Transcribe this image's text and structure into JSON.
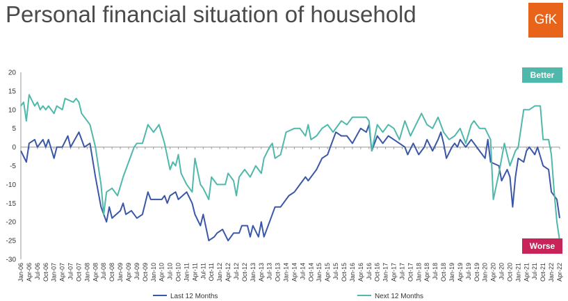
{
  "title": "Personal financial situation of household",
  "logo": {
    "text": "GfK",
    "color": "#e8641b"
  },
  "colors": {
    "last12": "#3a57a7",
    "next12": "#4fb8ab",
    "better": "#4fb8ab",
    "worse": "#c8245a"
  },
  "annotations": {
    "better": "Better",
    "worse": "Worse"
  },
  "chart_data": {
    "type": "line",
    "x_start": "Jan-06",
    "x_end": "Apr-22",
    "ylim": [
      -30,
      20
    ],
    "yticks": [
      20,
      15,
      10,
      5,
      0,
      -5,
      -10,
      -15,
      -20,
      -25,
      -30
    ],
    "xticks": [
      "Jan-06",
      "Apr-06",
      "Jul-06",
      "Oct-06",
      "Jan-07",
      "Apr-07",
      "Jul-07",
      "Oct-07",
      "Jan-08",
      "Apr-08",
      "Jul-08",
      "Oct-08",
      "Jan-09",
      "Apr-09",
      "Jul-09",
      "Oct-09",
      "Jan-10",
      "Apr-10",
      "Jul-10",
      "Oct-10",
      "Jan-11",
      "Apr-11",
      "Jul-11",
      "Oct-11",
      "Jan-12",
      "Apr-12",
      "Jul-12",
      "Oct-12",
      "Jan-13",
      "Apr-13",
      "Jul-13",
      "Oct-13",
      "Jan-14",
      "Apr-14",
      "Jul-14",
      "Oct-14",
      "Jan-15",
      "Apr-15",
      "Jul-15",
      "Oct-15",
      "Jan-16",
      "Apr-16",
      "Jul-16",
      "Oct-16",
      "Jan-17",
      "Apr-17",
      "Jul-17",
      "Oct-17",
      "Jan-18",
      "Apr-18",
      "Jul-18",
      "Oct-18",
      "Jan-19",
      "Apr-19",
      "Jul-19",
      "Oct-19",
      "Jan-20",
      "Apr-20",
      "Jul-20",
      "Oct-20",
      "Jan-21",
      "Apr-21",
      "Jul-21",
      "Oct-21",
      "Jan-22",
      "Apr-22"
    ],
    "grid": false,
    "legend": "bottom",
    "series": [
      {
        "name": "Last 12 Months",
        "points": [
          [
            "Jan-06",
            -1
          ],
          [
            "Mar-06",
            -4
          ],
          [
            "Apr-06",
            1
          ],
          [
            "Jun-06",
            2
          ],
          [
            "Jul-06",
            0
          ],
          [
            "Sep-06",
            2
          ],
          [
            "Oct-06",
            0
          ],
          [
            "Nov-06",
            2
          ],
          [
            "Jan-07",
            -3
          ],
          [
            "Feb-07",
            0
          ],
          [
            "Apr-07",
            0
          ],
          [
            "Jun-07",
            3
          ],
          [
            "Jul-07",
            0
          ],
          [
            "Oct-07",
            4
          ],
          [
            "Dec-07",
            0
          ],
          [
            "Feb-08",
            1
          ],
          [
            "Apr-08",
            -8
          ],
          [
            "Jun-08",
            -16
          ],
          [
            "Aug-08",
            -20
          ],
          [
            "Sep-08",
            -16
          ],
          [
            "Oct-08",
            -19
          ],
          [
            "Jan-09",
            -17
          ],
          [
            "Feb-09",
            -15
          ],
          [
            "Mar-09",
            -18
          ],
          [
            "May-09",
            -17
          ],
          [
            "Jul-09",
            -19
          ],
          [
            "Sep-09",
            -18
          ],
          [
            "Nov-09",
            -12
          ],
          [
            "Dec-09",
            -14
          ],
          [
            "Apr-10",
            -14
          ],
          [
            "May-10",
            -13
          ],
          [
            "Jun-10",
            -15
          ],
          [
            "Jul-10",
            -13
          ],
          [
            "Sep-10",
            -12
          ],
          [
            "Oct-10",
            -14
          ],
          [
            "Jan-11",
            -12
          ],
          [
            "Mar-11",
            -15
          ],
          [
            "Apr-11",
            -18
          ],
          [
            "Jun-11",
            -21
          ],
          [
            "Jul-11",
            -18
          ],
          [
            "Sep-11",
            -25
          ],
          [
            "Nov-11",
            -24
          ],
          [
            "Dec-11",
            -23
          ],
          [
            "Feb-12",
            -22
          ],
          [
            "Apr-12",
            -25
          ],
          [
            "Jun-12",
            -23
          ],
          [
            "Aug-12",
            -23
          ],
          [
            "Sep-12",
            -21
          ],
          [
            "Nov-12",
            -21
          ],
          [
            "Dec-12",
            -24
          ],
          [
            "Jan-13",
            -21
          ],
          [
            "Mar-13",
            -24
          ],
          [
            "Apr-13",
            -20
          ],
          [
            "May-13",
            -24
          ],
          [
            "Jul-13",
            -20
          ],
          [
            "Sep-13",
            -16
          ],
          [
            "Nov-13",
            -16
          ],
          [
            "Feb-14",
            -13
          ],
          [
            "Apr-14",
            -12
          ],
          [
            "Jun-14",
            -10
          ],
          [
            "Aug-14",
            -8
          ],
          [
            "Sep-14",
            -9
          ],
          [
            "Dec-14",
            -6
          ],
          [
            "Feb-15",
            -3
          ],
          [
            "Apr-15",
            -2
          ],
          [
            "May-15",
            0
          ],
          [
            "Jul-15",
            4
          ],
          [
            "Sep-15",
            3
          ],
          [
            "Nov-15",
            3
          ],
          [
            "Jan-16",
            1
          ],
          [
            "Apr-16",
            5
          ],
          [
            "Jun-16",
            4
          ],
          [
            "Jul-16",
            6
          ],
          [
            "Aug-16",
            -1
          ],
          [
            "Oct-16",
            3
          ],
          [
            "Dec-16",
            1
          ],
          [
            "Feb-17",
            3
          ],
          [
            "Apr-17",
            2
          ],
          [
            "Jun-17",
            1
          ],
          [
            "Aug-17",
            0
          ],
          [
            "Sep-17",
            -2
          ],
          [
            "Nov-17",
            1
          ],
          [
            "Jan-18",
            -2
          ],
          [
            "Mar-18",
            0
          ],
          [
            "Apr-18",
            2
          ],
          [
            "Jun-18",
            -1
          ],
          [
            "Aug-18",
            2
          ],
          [
            "Sep-18",
            4
          ],
          [
            "Oct-18",
            1
          ],
          [
            "Nov-18",
            -3
          ],
          [
            "Jan-19",
            0
          ],
          [
            "Feb-19",
            1
          ],
          [
            "Mar-19",
            0
          ],
          [
            "Apr-19",
            2
          ],
          [
            "Jun-19",
            0
          ],
          [
            "Aug-19",
            2
          ],
          [
            "Sep-19",
            1
          ],
          [
            "Oct-19",
            0
          ],
          [
            "Nov-19",
            -1
          ],
          [
            "Jan-20",
            -3
          ],
          [
            "Feb-20",
            2
          ],
          [
            "Mar-20",
            -4
          ],
          [
            "Jun-20",
            -5
          ],
          [
            "Jul-20",
            -9
          ],
          [
            "Sep-20",
            -6
          ],
          [
            "Oct-20",
            -8
          ],
          [
            "Nov-20",
            -16
          ],
          [
            "Dec-20",
            -8
          ],
          [
            "Jan-21",
            -3
          ],
          [
            "Mar-21",
            -4
          ],
          [
            "Apr-21",
            -1
          ],
          [
            "May-21",
            0
          ],
          [
            "Jul-21",
            -2
          ],
          [
            "Aug-21",
            0
          ],
          [
            "Oct-21",
            -5
          ],
          [
            "Dec-21",
            -6
          ],
          [
            "Jan-22",
            -12
          ],
          [
            "Mar-22",
            -14
          ],
          [
            "Apr-22",
            -19
          ]
        ]
      },
      {
        "name": "Next 12 Months",
        "points": [
          [
            "Jan-06",
            11
          ],
          [
            "Feb-06",
            12
          ],
          [
            "Mar-06",
            7
          ],
          [
            "Apr-06",
            14
          ],
          [
            "Jun-06",
            11
          ],
          [
            "Jul-06",
            12
          ],
          [
            "Aug-06",
            10
          ],
          [
            "Sep-06",
            11
          ],
          [
            "Oct-06",
            10
          ],
          [
            "Nov-06",
            11
          ],
          [
            "Jan-07",
            9
          ],
          [
            "Feb-07",
            11
          ],
          [
            "Apr-07",
            10
          ],
          [
            "May-07",
            13
          ],
          [
            "Aug-07",
            12
          ],
          [
            "Sep-07",
            13
          ],
          [
            "Oct-07",
            12
          ],
          [
            "Nov-07",
            9
          ],
          [
            "Feb-08",
            6
          ],
          [
            "Apr-08",
            0
          ],
          [
            "Jun-08",
            -10
          ],
          [
            "Jul-08",
            -18
          ],
          [
            "Aug-08",
            -12
          ],
          [
            "Oct-08",
            -11
          ],
          [
            "Dec-08",
            -13
          ],
          [
            "Feb-09",
            -8
          ],
          [
            "Apr-09",
            -4
          ],
          [
            "Jun-09",
            0
          ],
          [
            "Jul-09",
            1
          ],
          [
            "Sep-09",
            1
          ],
          [
            "Nov-09",
            6
          ],
          [
            "Jan-10",
            4
          ],
          [
            "Mar-10",
            6
          ],
          [
            "May-10",
            1
          ],
          [
            "Jul-10",
            -6
          ],
          [
            "Aug-10",
            -4
          ],
          [
            "Sep-10",
            -5
          ],
          [
            "Oct-10",
            -2
          ],
          [
            "Nov-10",
            -7
          ],
          [
            "Jan-11",
            -10
          ],
          [
            "Mar-11",
            -12
          ],
          [
            "Apr-11",
            -3
          ],
          [
            "Jun-11",
            -10
          ],
          [
            "Jul-11",
            -11
          ],
          [
            "Sep-11",
            -14
          ],
          [
            "Oct-11",
            -8
          ],
          [
            "Dec-11",
            -10
          ],
          [
            "Mar-12",
            -10
          ],
          [
            "Apr-12",
            -7
          ],
          [
            "Jun-12",
            -9
          ],
          [
            "Jul-12",
            -13
          ],
          [
            "Aug-12",
            -8
          ],
          [
            "Oct-12",
            -6
          ],
          [
            "Dec-12",
            -8
          ],
          [
            "Feb-13",
            -5
          ],
          [
            "Apr-13",
            -7
          ],
          [
            "May-13",
            -3
          ],
          [
            "Jul-13",
            0
          ],
          [
            "Aug-13",
            1
          ],
          [
            "Sep-13",
            -3
          ],
          [
            "Nov-13",
            -2
          ],
          [
            "Jan-14",
            4
          ],
          [
            "Apr-14",
            5
          ],
          [
            "Jun-14",
            5
          ],
          [
            "Aug-14",
            3
          ],
          [
            "Sep-14",
            6
          ],
          [
            "Oct-14",
            2
          ],
          [
            "Dec-14",
            3
          ],
          [
            "Feb-15",
            5
          ],
          [
            "Apr-15",
            6
          ],
          [
            "Jun-15",
            4
          ],
          [
            "Sep-15",
            7
          ],
          [
            "Nov-15",
            6
          ],
          [
            "Jan-16",
            8
          ],
          [
            "Apr-16",
            8
          ],
          [
            "Jun-16",
            8
          ],
          [
            "Jul-16",
            7
          ],
          [
            "Aug-16",
            -1
          ],
          [
            "Oct-16",
            6
          ],
          [
            "Dec-16",
            4
          ],
          [
            "Feb-17",
            6
          ],
          [
            "Apr-17",
            5
          ],
          [
            "Jun-17",
            2
          ],
          [
            "Aug-17",
            7
          ],
          [
            "Oct-17",
            3
          ],
          [
            "Dec-17",
            6
          ],
          [
            "Feb-18",
            9
          ],
          [
            "Apr-18",
            6
          ],
          [
            "Jun-18",
            5
          ],
          [
            "Aug-18",
            8
          ],
          [
            "Oct-18",
            4
          ],
          [
            "Dec-18",
            2
          ],
          [
            "Feb-19",
            3
          ],
          [
            "Apr-19",
            5
          ],
          [
            "Jun-19",
            1
          ],
          [
            "Aug-19",
            6
          ],
          [
            "Sep-19",
            7
          ],
          [
            "Nov-19",
            5
          ],
          [
            "Jan-20",
            5
          ],
          [
            "Mar-20",
            2
          ],
          [
            "Apr-20",
            -14
          ],
          [
            "Jun-20",
            -7
          ],
          [
            "Aug-20",
            1
          ],
          [
            "Oct-20",
            -5
          ],
          [
            "Dec-20",
            -1
          ],
          [
            "Jan-21",
            0
          ],
          [
            "Mar-21",
            10
          ],
          [
            "May-21",
            10
          ],
          [
            "Jul-21",
            11
          ],
          [
            "Sep-21",
            11
          ],
          [
            "Oct-21",
            2
          ],
          [
            "Dec-21",
            2
          ],
          [
            "Jan-22",
            -2
          ],
          [
            "Feb-22",
            -12
          ],
          [
            "Mar-22",
            -20
          ],
          [
            "Apr-22",
            -25
          ]
        ]
      }
    ]
  }
}
